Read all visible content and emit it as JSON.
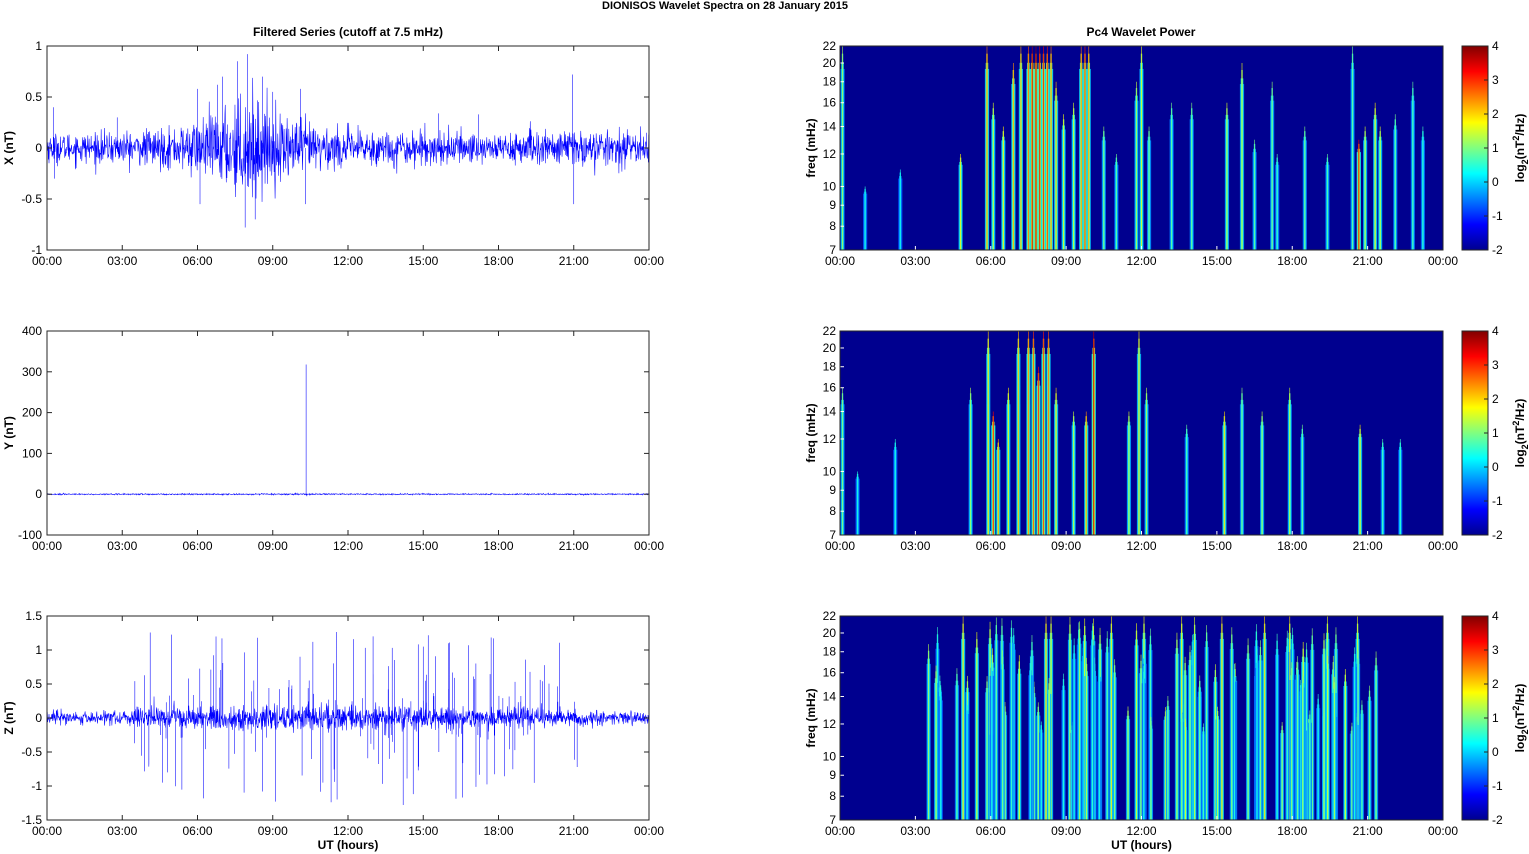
{
  "figure": {
    "title": "DIONISOS Wavelet Spectra on 28 January   2015",
    "left_column_title": "Filtered Series (cutoff at 7.5 mHz)",
    "right_column_title": "Pc4 Wavelet Power",
    "xlabel": "UT (hours)"
  },
  "colors": {
    "series": "#0000ff",
    "background": "#00008f",
    "frame": "#262626"
  },
  "chart_data": [
    {
      "type": "line",
      "panel": "x-series",
      "ylabel": "X (nT)",
      "x_ticks": [
        "00:00",
        "03:00",
        "06:00",
        "09:00",
        "12:00",
        "15:00",
        "18:00",
        "21:00",
        "00:00"
      ],
      "xlim_hours": [
        0,
        24
      ],
      "ylim": [
        -1,
        1
      ],
      "y_ticks": [
        -1,
        -0.5,
        0,
        0.5,
        1
      ],
      "y_tick_labels": [
        "-1",
        "-0.5",
        "0",
        "0.5",
        "1"
      ],
      "baseline_amplitude": 0.07,
      "envelope": [
        [
          0,
          1.0
        ],
        [
          3,
          1.1
        ],
        [
          5,
          1.4
        ],
        [
          6.5,
          2.2
        ],
        [
          7.5,
          3.2
        ],
        [
          8.2,
          3.6
        ],
        [
          9,
          2.5
        ],
        [
          10.5,
          1.8
        ],
        [
          12,
          1.3
        ],
        [
          15,
          1.2
        ],
        [
          18,
          1.1
        ],
        [
          21,
          1.3
        ],
        [
          24,
          1.0
        ]
      ],
      "spikes": [
        [
          0.25,
          0.4
        ],
        [
          0.3,
          -0.3
        ],
        [
          2.8,
          0.3
        ],
        [
          6.0,
          0.58
        ],
        [
          6.1,
          -0.55
        ],
        [
          6.8,
          0.62
        ],
        [
          7.0,
          0.7
        ],
        [
          7.6,
          0.85
        ],
        [
          7.9,
          -0.78
        ],
        [
          8.0,
          0.92
        ],
        [
          8.3,
          -0.7
        ],
        [
          8.6,
          0.7
        ],
        [
          9.0,
          0.55
        ],
        [
          10.1,
          0.58
        ],
        [
          10.3,
          -0.55
        ],
        [
          15.6,
          0.34
        ],
        [
          17.2,
          0.33
        ],
        [
          20.95,
          0.72
        ],
        [
          21.0,
          -0.55
        ],
        [
          23.9,
          0.15
        ]
      ]
    },
    {
      "type": "line",
      "panel": "y-series",
      "ylabel": "Y (nT)",
      "x_ticks": [
        "00:00",
        "03:00",
        "06:00",
        "09:00",
        "12:00",
        "15:00",
        "18:00",
        "21:00",
        "00:00"
      ],
      "xlim_hours": [
        0,
        24
      ],
      "ylim": [
        -100,
        400
      ],
      "y_ticks": [
        -100,
        0,
        100,
        200,
        300,
        400
      ],
      "y_tick_labels": [
        "-100",
        "0",
        "100",
        "200",
        "300",
        "400"
      ],
      "baseline_amplitude": 0.8,
      "envelope": [
        [
          0,
          1
        ],
        [
          24,
          1
        ]
      ],
      "spikes": [
        [
          10.33,
          318
        ],
        [
          10.36,
          -5
        ]
      ]
    },
    {
      "type": "line",
      "panel": "z-series",
      "ylabel": "Z (nT)",
      "x_ticks": [
        "00:00",
        "03:00",
        "06:00",
        "09:00",
        "12:00",
        "15:00",
        "18:00",
        "21:00",
        "00:00"
      ],
      "xlim_hours": [
        0,
        24
      ],
      "ylim": [
        -1.5,
        1.5
      ],
      "y_ticks": [
        -1.5,
        -1,
        -0.5,
        0,
        0.5,
        1,
        1.5
      ],
      "y_tick_labels": [
        "-1.5",
        "-1",
        "-0.5",
        "0",
        "0.5",
        "1",
        "1.5"
      ],
      "baseline_amplitude": 0.05,
      "envelope": [
        [
          0,
          1.0
        ],
        [
          3.2,
          1.0
        ],
        [
          3.6,
          1.6
        ],
        [
          10,
          1.8
        ],
        [
          14,
          1.7
        ],
        [
          19,
          1.5
        ],
        [
          21.5,
          1.1
        ],
        [
          24,
          1.0
        ]
      ],
      "spike_window_hours": [
        3.4,
        21.2
      ],
      "spike_count": 150,
      "spike_max": 1.15,
      "spikes": [
        [
          4.6,
          -0.95
        ],
        [
          8.4,
          1.18
        ],
        [
          8.6,
          -1.08
        ],
        [
          10.6,
          1.12
        ],
        [
          11.0,
          -0.95
        ],
        [
          13.0,
          1.2
        ],
        [
          14.2,
          -1.28
        ],
        [
          14.6,
          -1.12
        ],
        [
          15.0,
          1.05
        ],
        [
          17.8,
          1.0
        ],
        [
          16.0,
          1.1
        ]
      ]
    },
    {
      "type": "heatmap",
      "panel": "x-power",
      "ylabel": "freq (mHz)",
      "x_ticks": [
        "00:00",
        "03:00",
        "06:00",
        "09:00",
        "12:00",
        "15:00",
        "18:00",
        "21:00",
        "00:00"
      ],
      "xlim_hours": [
        0,
        24
      ],
      "y_scale": "log",
      "ylim_mhz": [
        7,
        22
      ],
      "y_ticks": [
        7,
        8,
        9,
        10,
        12,
        14,
        16,
        18,
        20,
        22
      ],
      "colorbar": {
        "clim": [
          -2,
          4
        ],
        "ticks": [
          "-2",
          "-1",
          "0",
          "1",
          "2",
          "3",
          "4"
        ],
        "label_base": "log",
        "label_sub": "2",
        "label_mid": "(nT",
        "label_sup": "2",
        "label_end": "/Hz)"
      },
      "bursts": [
        [
          0.1,
          1.2,
          22
        ],
        [
          1.0,
          0.3,
          10
        ],
        [
          2.4,
          0.2,
          11
        ],
        [
          4.8,
          1.8,
          12
        ],
        [
          5.85,
          2.6,
          22
        ],
        [
          6.1,
          1.5,
          16
        ],
        [
          6.5,
          1.8,
          14
        ],
        [
          6.9,
          2.4,
          20
        ],
        [
          7.2,
          2.3,
          22
        ],
        [
          7.5,
          2.8,
          22
        ],
        [
          7.65,
          3.8,
          22
        ],
        [
          7.8,
          4.0,
          22
        ],
        [
          7.95,
          3.6,
          22
        ],
        [
          8.1,
          3.4,
          22
        ],
        [
          8.25,
          3.2,
          22
        ],
        [
          8.4,
          2.6,
          22
        ],
        [
          8.6,
          2.2,
          18
        ],
        [
          8.9,
          1.6,
          15
        ],
        [
          9.3,
          1.5,
          16
        ],
        [
          9.6,
          2.6,
          22
        ],
        [
          9.75,
          3.2,
          22
        ],
        [
          9.9,
          2.5,
          22
        ],
        [
          10.5,
          1.0,
          14
        ],
        [
          11.0,
          0.8,
          12
        ],
        [
          11.8,
          1.3,
          18
        ],
        [
          12.0,
          1.6,
          22
        ],
        [
          12.3,
          1.0,
          14
        ],
        [
          13.2,
          0.8,
          16
        ],
        [
          14.0,
          0.9,
          16
        ],
        [
          15.4,
          1.5,
          16
        ],
        [
          16.0,
          1.6,
          20
        ],
        [
          16.5,
          0.8,
          13
        ],
        [
          17.2,
          1.0,
          18
        ],
        [
          17.4,
          0.6,
          12
        ],
        [
          18.5,
          0.9,
          14
        ],
        [
          19.4,
          0.7,
          12
        ],
        [
          20.4,
          0.8,
          22
        ],
        [
          20.65,
          3.5,
          13
        ],
        [
          20.9,
          1.5,
          14
        ],
        [
          21.3,
          1.8,
          16
        ],
        [
          21.5,
          1.5,
          14
        ],
        [
          22.1,
          0.8,
          15
        ],
        [
          22.8,
          0.7,
          18
        ],
        [
          23.2,
          0.5,
          14
        ]
      ]
    },
    {
      "type": "heatmap",
      "panel": "y-power",
      "ylabel": "freq (mHz)",
      "x_ticks": [
        "00:00",
        "03:00",
        "06:00",
        "09:00",
        "12:00",
        "15:00",
        "18:00",
        "21:00",
        "00:00"
      ],
      "xlim_hours": [
        0,
        24
      ],
      "y_scale": "log",
      "ylim_mhz": [
        7,
        22
      ],
      "y_ticks": [
        7,
        8,
        9,
        10,
        12,
        14,
        16,
        18,
        20,
        22
      ],
      "colorbar": {
        "clim": [
          -2,
          4
        ],
        "ticks": [
          "-2",
          "-1",
          "0",
          "1",
          "2",
          "3",
          "4"
        ],
        "label_base": "log",
        "label_sub": "2",
        "label_mid": "(nT",
        "label_sup": "2",
        "label_end": "/Hz)"
      },
      "bursts": [
        [
          0.1,
          1.0,
          16
        ],
        [
          0.7,
          0.3,
          10
        ],
        [
          2.2,
          0.3,
          12
        ],
        [
          5.2,
          1.2,
          16
        ],
        [
          5.9,
          2.0,
          22
        ],
        [
          6.1,
          3.4,
          14
        ],
        [
          6.3,
          2.4,
          12
        ],
        [
          6.7,
          1.8,
          16
        ],
        [
          7.1,
          2.2,
          22
        ],
        [
          7.5,
          2.6,
          22
        ],
        [
          7.7,
          3.0,
          22
        ],
        [
          7.9,
          3.3,
          18
        ],
        [
          8.1,
          3.2,
          22
        ],
        [
          8.3,
          2.8,
          22
        ],
        [
          8.6,
          2.0,
          16
        ],
        [
          9.3,
          1.4,
          14
        ],
        [
          9.8,
          2.5,
          14
        ],
        [
          10.1,
          3.8,
          22
        ],
        [
          11.5,
          1.5,
          14
        ],
        [
          11.9,
          1.9,
          22
        ],
        [
          12.2,
          1.3,
          16
        ],
        [
          13.8,
          0.7,
          13
        ],
        [
          15.3,
          2.0,
          14
        ],
        [
          16.0,
          1.0,
          16
        ],
        [
          16.8,
          1.3,
          14
        ],
        [
          17.9,
          1.4,
          16
        ],
        [
          18.4,
          0.8,
          13
        ],
        [
          20.7,
          1.8,
          13
        ],
        [
          21.6,
          0.6,
          12
        ],
        [
          22.3,
          0.5,
          12
        ]
      ]
    },
    {
      "type": "heatmap",
      "panel": "z-power",
      "ylabel": "freq (mHz)",
      "x_ticks": [
        "00:00",
        "03:00",
        "06:00",
        "09:00",
        "12:00",
        "15:00",
        "18:00",
        "21:00",
        "00:00"
      ],
      "xlim_hours": [
        0,
        24
      ],
      "y_scale": "log",
      "ylim_mhz": [
        7,
        22
      ],
      "y_ticks": [
        7,
        8,
        9,
        10,
        12,
        14,
        16,
        18,
        20,
        22
      ],
      "colorbar": {
        "clim": [
          -2,
          4
        ],
        "ticks": [
          "-2",
          "-1",
          "0",
          "1",
          "2",
          "3",
          "4"
        ],
        "label_base": "log",
        "label_sub": "2",
        "label_mid": "(nT",
        "label_sup": "2",
        "label_end": "/Hz)"
      },
      "burst_window_hours": [
        3.5,
        21.5
      ],
      "burst_count": 110,
      "bursts": [
        [
          4.9,
          2.0,
          22
        ],
        [
          8.2,
          2.2,
          22
        ],
        [
          8.4,
          1.8,
          22
        ],
        [
          10.8,
          1.8,
          22
        ],
        [
          12.1,
          1.7,
          22
        ],
        [
          13.6,
          1.8,
          22
        ],
        [
          15.2,
          2.1,
          22
        ],
        [
          16.9,
          2.0,
          22
        ],
        [
          17.9,
          1.9,
          22
        ],
        [
          19.4,
          1.6,
          22
        ],
        [
          20.6,
          1.6,
          22
        ]
      ]
    }
  ]
}
